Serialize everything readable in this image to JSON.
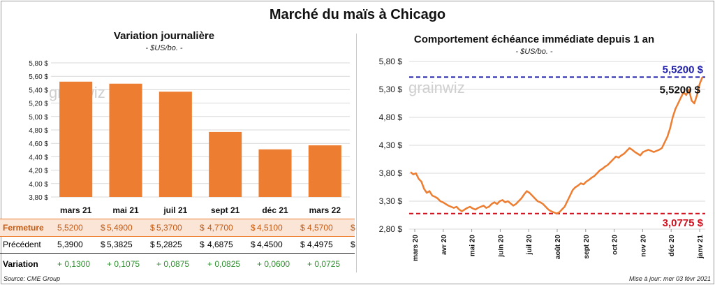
{
  "title": "Marché du maïs à Chicago",
  "left_panel": {
    "title": "Variation  journalière",
    "unit": "- $US/bo. -"
  },
  "right_panel": {
    "title": "Comportement  échéance immédiate depuis 1 an",
    "unit": "- $US/bo. -"
  },
  "watermark": "grainwiz",
  "table": {
    "rows": [
      {
        "label": "Fermeture",
        "values": [
          "5,5200",
          "5,4900",
          "5,3700",
          "4,7700",
          "4,5100",
          "4,5700"
        ],
        "currency": "$"
      },
      {
        "label": "Précédent",
        "values": [
          "5,3900",
          "5,3825",
          "5,2825",
          "4,6875",
          "4,4500",
          "4,4975"
        ],
        "currency": "$"
      },
      {
        "label": "Variation",
        "values": [
          "+ 0,1300",
          "+ 0,1075",
          "+ 0,0875",
          "+ 0,0825",
          "+ 0,0600",
          "+ 0,0725"
        ],
        "currency": ""
      }
    ]
  },
  "footer": {
    "source": "Source: CME Group",
    "updated": "Mise à jour: mer 03 févr 2021"
  },
  "colors": {
    "bar": "#ED7D31",
    "line": "#ED7D31",
    "max_line": "#1F1FAA",
    "min_line": "#D0101E",
    "highlight_row": "#FBE5D6",
    "variation_text": "#2F8F2F"
  },
  "chart_data": [
    {
      "type": "bar",
      "categories": [
        "mars 21",
        "mai 21",
        "juil 21",
        "sept 21",
        "déc 21",
        "mars 22"
      ],
      "values": [
        5.52,
        5.49,
        5.37,
        4.77,
        4.51,
        4.57
      ],
      "ylim": [
        3.8,
        5.8
      ],
      "yticks": [
        "3,80 $",
        "4,00 $",
        "4,20 $",
        "4,40 $",
        "4,60 $",
        "4,80 $",
        "5,00 $",
        "5,20 $",
        "5,40 $",
        "5,60 $",
        "5,80 $"
      ],
      "grid": true
    },
    {
      "type": "line",
      "x_labels": [
        "mars 20",
        "avr 20",
        "mai 20",
        "juin 20",
        "juil 20",
        "août 20",
        "sept 20",
        "oct 20",
        "nov 20",
        "déc 20",
        "janv 21"
      ],
      "ylim": [
        2.8,
        5.8
      ],
      "yticks": [
        "2,80 $",
        "3,30 $",
        "3,80 $",
        "4,30 $",
        "4,80 $",
        "5,30 $",
        "5,80 $"
      ],
      "max_value": 5.52,
      "max_label": "5,5200 $",
      "min_value": 3.0775,
      "min_label": "3,0775 $",
      "last_value": 5.52,
      "last_label": "5,5200 $",
      "grid": true,
      "series": [
        {
          "values": [
            3.82,
            3.78,
            3.8,
            3.7,
            3.65,
            3.52,
            3.45,
            3.48,
            3.4,
            3.38,
            3.35,
            3.3,
            3.28,
            3.25,
            3.22,
            3.2,
            3.18,
            3.2,
            3.15,
            3.12,
            3.15,
            3.18,
            3.2,
            3.17,
            3.15,
            3.18,
            3.2,
            3.22,
            3.18,
            3.2,
            3.25,
            3.28,
            3.25,
            3.3,
            3.32,
            3.28,
            3.3,
            3.26,
            3.22,
            3.25,
            3.3,
            3.35,
            3.42,
            3.48,
            3.45,
            3.4,
            3.35,
            3.3,
            3.28,
            3.25,
            3.2,
            3.15,
            3.12,
            3.1,
            3.08,
            3.1,
            3.15,
            3.2,
            3.3,
            3.4,
            3.5,
            3.55,
            3.58,
            3.62,
            3.6,
            3.65,
            3.68,
            3.72,
            3.75,
            3.8,
            3.85,
            3.88,
            3.92,
            3.95,
            4.0,
            4.05,
            4.1,
            4.08,
            4.12,
            4.15,
            4.2,
            4.25,
            4.22,
            4.18,
            4.15,
            4.12,
            4.18,
            4.2,
            4.22,
            4.2,
            4.18,
            4.2,
            4.22,
            4.25,
            4.35,
            4.45,
            4.6,
            4.8,
            4.95,
            5.05,
            5.15,
            5.25,
            5.2,
            5.3,
            5.1,
            5.05,
            5.2,
            5.4,
            5.52
          ]
        }
      ]
    }
  ]
}
